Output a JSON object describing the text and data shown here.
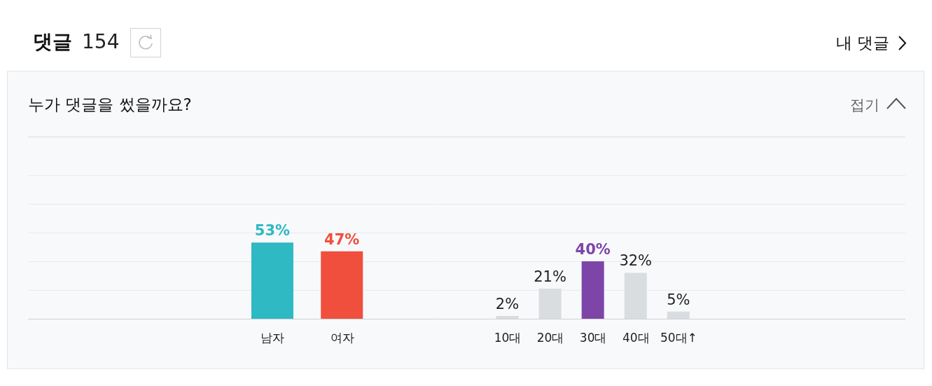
{
  "chart_data": [
    {
      "type": "bar",
      "title": "누가 댓글을 썼을까요?",
      "annotations": [
        "댓글",
        "154",
        "내 댓글",
        "접기"
      ],
      "categories": [
        "남자",
        "여자"
      ],
      "values": [
        53,
        47
      ],
      "colors": [
        "#2eb9c3",
        "#f04f3e"
      ],
      "value_labels": [
        "53%",
        "47%"
      ],
      "ylim": [
        0,
        100
      ],
      "yticks": [
        {
          "value": 0,
          "label": null
        },
        {
          "value": 20,
          "label": null
        },
        {
          "value": 40,
          "label": null
        },
        {
          "value": 60,
          "label": null
        },
        {
          "value": 80,
          "label": null
        },
        {
          "value": 100,
          "label": null
        }
      ],
      "grid": "y",
      "tick_labels": "x"
    },
    {
      "type": "bar",
      "categories": [
        "10대",
        "20대",
        "30대",
        "40대",
        "50대↑"
      ],
      "values": [
        2,
        21,
        40,
        32,
        5
      ],
      "colors": [
        "#d9dde0",
        "#d9dde0",
        "#7d45a8",
        "#d9dde0",
        "#d9dde0"
      ],
      "value_labels": [
        "2%",
        "21%",
        "40%",
        "32%",
        "5%"
      ],
      "ylim": [
        0,
        100
      ],
      "yticks": [
        {
          "value": 0,
          "label": null
        },
        {
          "value": 20,
          "label": null
        },
        {
          "value": 40,
          "label": null
        },
        {
          "value": 60,
          "label": null
        },
        {
          "value": 80,
          "label": null
        },
        {
          "value": 100,
          "label": null
        }
      ],
      "grid": "y",
      "tick_labels": "x"
    }
  ]
}
